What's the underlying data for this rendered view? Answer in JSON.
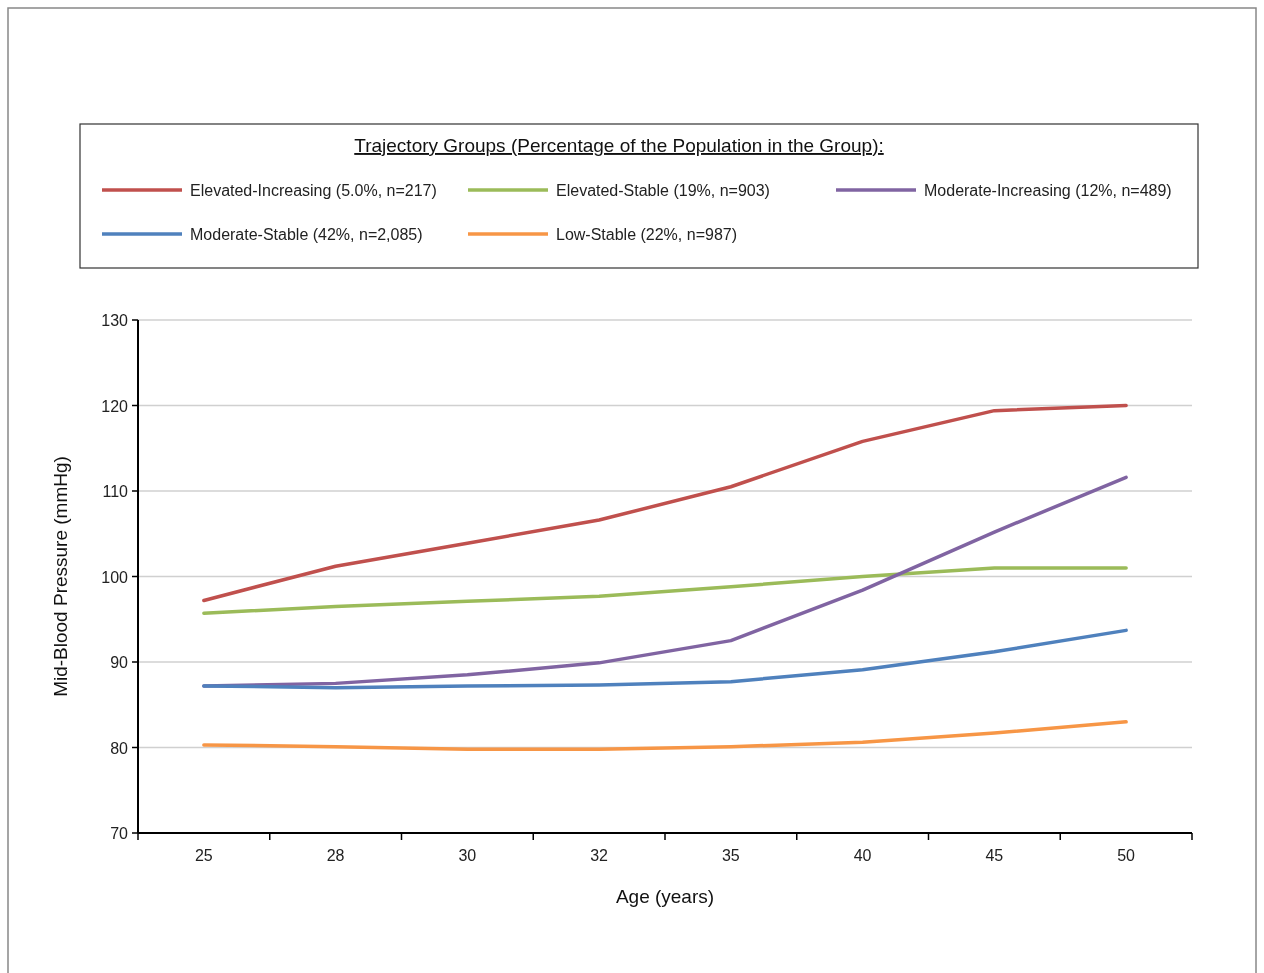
{
  "chart_data": {
    "type": "line",
    "xlabel": "Age (years)",
    "ylabel": "Mid-Blood Pressure (mmHg)",
    "legend_title": "Trajectory Groups (Percentage of the Population in the Group):",
    "legend": "top",
    "grid": "y",
    "categories": [
      "25",
      "28",
      "30",
      "32",
      "35",
      "40",
      "45",
      "50"
    ],
    "ylim": [
      70,
      130
    ],
    "yticks": [
      70,
      80,
      90,
      100,
      110,
      120,
      130
    ],
    "series": [
      {
        "name": "Elevated-Increasing (5.0%, n=217)",
        "color": "#c0504d",
        "values": [
          97.2,
          101.2,
          103.9,
          106.6,
          110.5,
          115.8,
          119.4,
          120
        ]
      },
      {
        "name": "Elevated-Stable (19%, n=903)",
        "color": "#9bbb59",
        "values": [
          95.7,
          96.5,
          97.1,
          97.7,
          98.8,
          100,
          101,
          101
        ]
      },
      {
        "name": "Moderate-Increasing (12%, n=489)",
        "color": "#8064a2",
        "values": [
          87.2,
          87.5,
          88.5,
          89.9,
          92.5,
          98.4,
          105.2,
          111.6
        ]
      },
      {
        "name": "Moderate-Stable (42%, n=2,085)",
        "color": "#4f81bd",
        "values": [
          87.2,
          87.0,
          87.2,
          87.3,
          87.7,
          89.1,
          91.2,
          93.7
        ]
      },
      {
        "name": "Low-Stable (22%, n=987)",
        "color": "#f79646",
        "values": [
          80.3,
          80.1,
          79.8,
          79.8,
          80.1,
          80.6,
          81.7,
          83.0
        ]
      }
    ]
  }
}
